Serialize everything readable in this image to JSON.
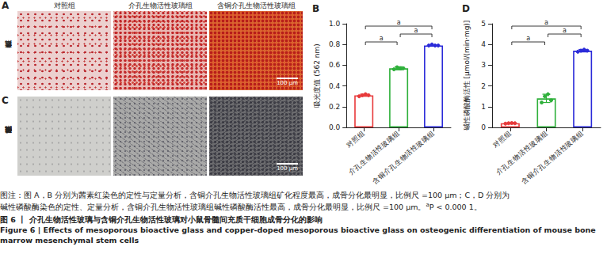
{
  "image_panels": {
    "panels": [
      "A",
      "C"
    ],
    "columns": [
      "对照组",
      "介孔生物活性玻璃组",
      "含铜介孔生物活性玻璃组"
    ],
    "rows": [
      "茜素红染色",
      "碱性磷酸酶染色"
    ],
    "scale_bar": "100 μm"
  },
  "chart_data": [
    {
      "type": "bar",
      "title": "B",
      "categories": [
        "对照组",
        "介孔生物活性玻璃组",
        "含铜介孔生物活性玻璃组"
      ],
      "values": [
        0.31,
        0.57,
        0.79
      ],
      "errors": [
        0.01,
        0.015,
        0.006
      ],
      "points": [
        [
          0.3,
          0.31,
          0.32,
          0.31
        ],
        [
          0.56,
          0.58,
          0.57,
          0.57
        ],
        [
          0.79,
          0.8,
          0.79,
          0.79
        ]
      ],
      "colors": [
        "#e8393a",
        "#2eb03a",
        "#2b2bd9"
      ],
      "y_label": "吸光度值 (562 nm)",
      "ylim": [
        0,
        1.0
      ],
      "yticks": [
        {
          "value": 0,
          "label": "0.0"
        },
        0.2,
        0.4,
        0.6,
        0.8,
        {
          "value": 1.0,
          "label": "1.0"
        }
      ],
      "grid": false,
      "annotations": [
        {
          "between": [
            "对照组",
            "介孔生物活性玻璃组"
          ],
          "label": "a"
        },
        {
          "between": [
            "介孔生物活性玻璃组",
            "含铜介孔生物活性玻璃组"
          ],
          "label": "a"
        },
        {
          "between": [
            "对照组",
            "含铜介孔生物活性玻璃组"
          ],
          "label": "a"
        }
      ]
    },
    {
      "type": "bar",
      "title": "D",
      "categories": [
        "对照组",
        "介孔生物活性玻璃组",
        "含铜介孔生物活性玻璃组"
      ],
      "values": [
        0.2,
        1.4,
        3.7
      ],
      "errors": [
        0.02,
        0.2,
        0.06
      ],
      "points": [
        [
          0.18,
          0.2,
          0.21,
          0.2
        ],
        [
          1.2,
          1.5,
          1.6,
          1.3
        ],
        [
          3.65,
          3.7,
          3.75,
          3.7
        ]
      ],
      "colors": [
        "#e8393a",
        "#2eb03a",
        "#2b2bd9"
      ],
      "y_label": "碱性磷酸酶活性 [μmol/(min·mg)]",
      "ylim": [
        0,
        5
      ],
      "yticks": [
        0,
        1,
        2,
        3,
        4,
        5
      ],
      "grid": false,
      "annotations": [
        {
          "between": [
            "对照组",
            "介孔生物活性玻璃组"
          ],
          "label": "a"
        },
        {
          "between": [
            "介孔生物活性玻璃组",
            "含铜介孔生物活性玻璃组"
          ],
          "label": "a"
        },
        {
          "between": [
            "对照组",
            "含铜介孔生物活性玻璃组"
          ],
          "label": "a"
        }
      ]
    }
  ],
  "caption": {
    "note_lines": [
      "图注：图 A，B 分别为茜素红染色的定性与定量分析，含铜介孔生物活性玻璃组矿化程度最高，成骨分化最明显，比例尺 =100 μm；C，D 分别为",
      "碱性磷酸酶染色的定性、定量分析，含铜介孔生物活性玻璃组碱性磷酸酶活性最高，成骨分化最明显，比例尺 =100 μm。"
    ],
    "footnote_mark": "a",
    "footnote": "P < 0.000 1。",
    "figure_title_zh": "图 6 丨 介孔生物活性玻璃与含铜介孔生物活性玻璃对小鼠骨髓间充质干细胞成骨分化的影响",
    "figure_title_en": "Figure 6 | Effects of mesoporous bioactive glass and copper-doped mesoporous bioactive glass on osteogenic differentiation of mouse bone marrow mesenchymal stem cells"
  }
}
